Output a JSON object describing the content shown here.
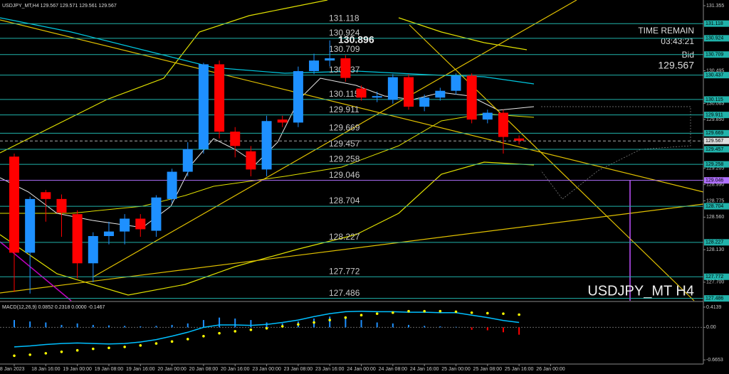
{
  "header": {
    "symbol_line": "USDJPY_MT,H4 129.567 129.571 129.561 129.567"
  },
  "info": {
    "time_remain_label": "TIME REMAIN",
    "time_remain": "03:43:21",
    "bid_label": "Bid",
    "bid": "129.567"
  },
  "watermark": "USDJPY_MT H4",
  "chart_data": [
    {
      "type": "candlestick",
      "x_labels": [
        "18 Jan 2023",
        "18 Jan 16:00",
        "19 Jan 00:00",
        "19 Jan 08:00",
        "19 Jan 16:00",
        "20 Jan 00:00",
        "20 Jan 08:00",
        "20 Jan 16:00",
        "23 Jan 00:00",
        "23 Jan 08:00",
        "23 Jan 16:00",
        "24 Jan 00:00",
        "24 Jan 08:00",
        "24 Jan 16:00",
        "25 Jan 00:00",
        "25 Jan 08:00",
        "25 Jan 16:00",
        "26 Jan 00:00"
      ],
      "open": [
        129.36,
        128.09,
        128.89,
        128.8,
        128.6,
        127.95,
        128.31,
        128.37,
        128.54,
        128.38,
        128.8,
        129.16,
        129.46,
        130.58,
        129.69,
        129.43,
        129.19,
        129.85,
        129.81,
        130.49,
        130.63,
        130.66,
        130.26,
        130.14,
        130.11,
        130.41,
        130.02,
        130.14,
        130.23,
        130.43,
        129.85,
        129.94,
        129.6
      ],
      "high": [
        129.4,
        128.83,
        128.92,
        128.86,
        128.65,
        128.36,
        128.5,
        128.6,
        128.6,
        128.85,
        129.2,
        129.55,
        130.6,
        130.63,
        129.75,
        129.5,
        129.9,
        129.9,
        130.55,
        130.72,
        130.896,
        130.7,
        130.3,
        130.22,
        130.45,
        130.45,
        130.18,
        130.27,
        130.46,
        130.46,
        129.98,
        129.98,
        129.64
      ],
      "low": [
        127.57,
        127.55,
        128.5,
        128.3,
        127.75,
        127.7,
        128.2,
        128.2,
        128.3,
        128.3,
        128.75,
        129.1,
        129.4,
        129.6,
        129.35,
        129.1,
        129.1,
        129.75,
        129.75,
        130.45,
        130.55,
        130.35,
        130.1,
        130.08,
        130.06,
        129.98,
        129.96,
        130.1,
        130.18,
        129.8,
        129.8,
        129.4,
        129.52
      ],
      "close": [
        128.09,
        128.8,
        128.8,
        128.62,
        127.95,
        128.31,
        128.37,
        128.54,
        128.4,
        128.82,
        129.16,
        129.46,
        130.58,
        129.69,
        129.5,
        129.19,
        129.83,
        129.81,
        130.49,
        130.63,
        130.66,
        130.4,
        130.14,
        130.16,
        130.41,
        130.02,
        130.14,
        130.23,
        130.43,
        129.85,
        129.94,
        129.62,
        129.57
      ],
      "up_color": "#1e90ff",
      "down_color": "#ff0000",
      "ylim": [
        127.45,
        131.43
      ],
      "yticks": [
        131.355,
        130.495,
        130.063,
        {
          "value": 129.85,
          "label": "129.850"
        },
        129.205,
        {
          "value": 128.99,
          "label": "128.990"
        },
        128.775,
        {
          "value": 128.56,
          "label": "128.560"
        },
        {
          "value": 128.13,
          "label": "128.130"
        },
        {
          "value": 127.7,
          "label": "127.700"
        }
      ],
      "levels": [
        {
          "value": 131.118,
          "color": "#20b2aa"
        },
        {
          "value": 130.924,
          "color": "#20b2aa"
        },
        {
          "value": 130.709,
          "color": "#20b2aa"
        },
        {
          "value": 130.437,
          "color": "#20b2aa"
        },
        {
          "value": 130.115,
          "color": "#20b2aa"
        },
        {
          "value": 129.911,
          "color": "#20b2aa"
        },
        {
          "value": 129.669,
          "color": "#20b2aa"
        },
        {
          "value": 129.457,
          "color": "#20b2aa"
        },
        {
          "value": 129.258,
          "color": "#20b2aa"
        },
        {
          "value": 129.046,
          "color": "#b070ff"
        },
        {
          "value": 128.704,
          "color": "#20b2aa"
        },
        {
          "value": 128.227,
          "color": "#20b2aa"
        },
        {
          "value": 127.772,
          "color": "#20b2aa"
        },
        {
          "value": 127.486,
          "color": "#20b2aa"
        }
      ],
      "current_price": 129.567,
      "high_label": 130.896
    },
    {
      "type": "macd",
      "title": "MACD(12,26,9) 0.0852 0.2318 0.0000 -0.1467",
      "ylim": [
        -0.75,
        0.5
      ],
      "yticks": [
        0.4139,
        {
          "value": 0,
          "label": "0.00"
        },
        -0.6653
      ],
      "series": [
        {
          "style": "histogram",
          "color": "#1e90ff",
          "neg_color": "#ff0000",
          "values": [
            0.15,
            0.12,
            0.1,
            0.05,
            0.08,
            0.05,
            0.04,
            0.03,
            0.02,
            0.03,
            0.05,
            0.08,
            0.15,
            0.2,
            0.18,
            0.15,
            0.1,
            0.08,
            0.12,
            0.18,
            0.22,
            0.2,
            0.15,
            0.1,
            0.08,
            0.05,
            0.03,
            0.02,
            0.01,
            -0.05,
            -0.06,
            -0.1,
            -0.15
          ]
        },
        {
          "style": "line",
          "color": "#00bfff",
          "values": [
            -0.4,
            -0.38,
            -0.35,
            -0.33,
            -0.32,
            -0.33,
            -0.34,
            -0.33,
            -0.3,
            -0.25,
            -0.18,
            -0.1,
            0.0,
            0.05,
            0.05,
            0.04,
            0.06,
            0.1,
            0.15,
            0.22,
            0.28,
            0.32,
            0.33,
            0.32,
            0.32,
            0.31,
            0.31,
            0.3,
            0.3,
            0.25,
            0.2,
            0.14,
            0.1
          ]
        },
        {
          "style": "dots",
          "color": "#ffff00",
          "values": [
            -0.58,
            -0.56,
            -0.53,
            -0.5,
            -0.47,
            -0.44,
            -0.42,
            -0.4,
            -0.37,
            -0.33,
            -0.29,
            -0.24,
            -0.18,
            -0.12,
            -0.08,
            -0.05,
            -0.02,
            0.02,
            0.06,
            0.1,
            0.15,
            0.2,
            0.25,
            0.28,
            0.3,
            0.33,
            0.33,
            0.33,
            0.32,
            0.3,
            0.29,
            0.28,
            0.26
          ]
        }
      ]
    }
  ]
}
